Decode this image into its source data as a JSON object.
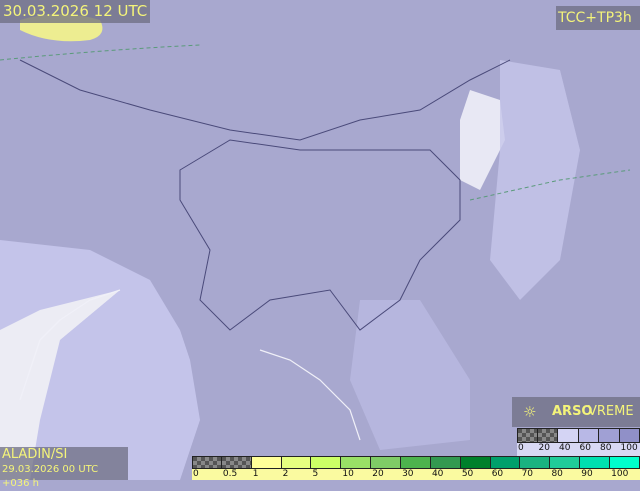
{
  "header": {
    "valid_time": "30.03.2026 12 UTC",
    "product": "TCC+TP3h"
  },
  "footer": {
    "model": "ALADIN/SI",
    "run": "29.03.2026 00 UTC +036 h"
  },
  "brand": {
    "name_bold": "ARSO",
    "name_light": "VREME",
    "icon": "sun-cloud-icon"
  },
  "precip_legend": {
    "labels": [
      "0",
      "0.5",
      "1",
      "2",
      "5",
      "10",
      "20",
      "30",
      "40",
      "50",
      "60",
      "70",
      "80",
      "90",
      "100"
    ],
    "colors": [
      "checker",
      "checker",
      "#ffff99",
      "#e6ff80",
      "#ccff66",
      "#99e066",
      "#7fcc66",
      "#4db34d",
      "#339950",
      "#00802b",
      "#00a06b",
      "#1ab380",
      "#20cc99",
      "#00e0b0",
      "#00ffcc"
    ]
  },
  "cloud_legend": {
    "labels": [
      "0",
      "20",
      "40",
      "60",
      "80",
      "100"
    ],
    "colors": [
      "checker",
      "checker",
      "#d4d4f4",
      "#b8b8e6",
      "#a0a0d4",
      "#9090c8"
    ]
  },
  "colors": {
    "label_text": "#f4f47a",
    "sea": "#c8c8ee",
    "land_cloud": "#a8a8cf",
    "coast": "#f0f0f0"
  }
}
